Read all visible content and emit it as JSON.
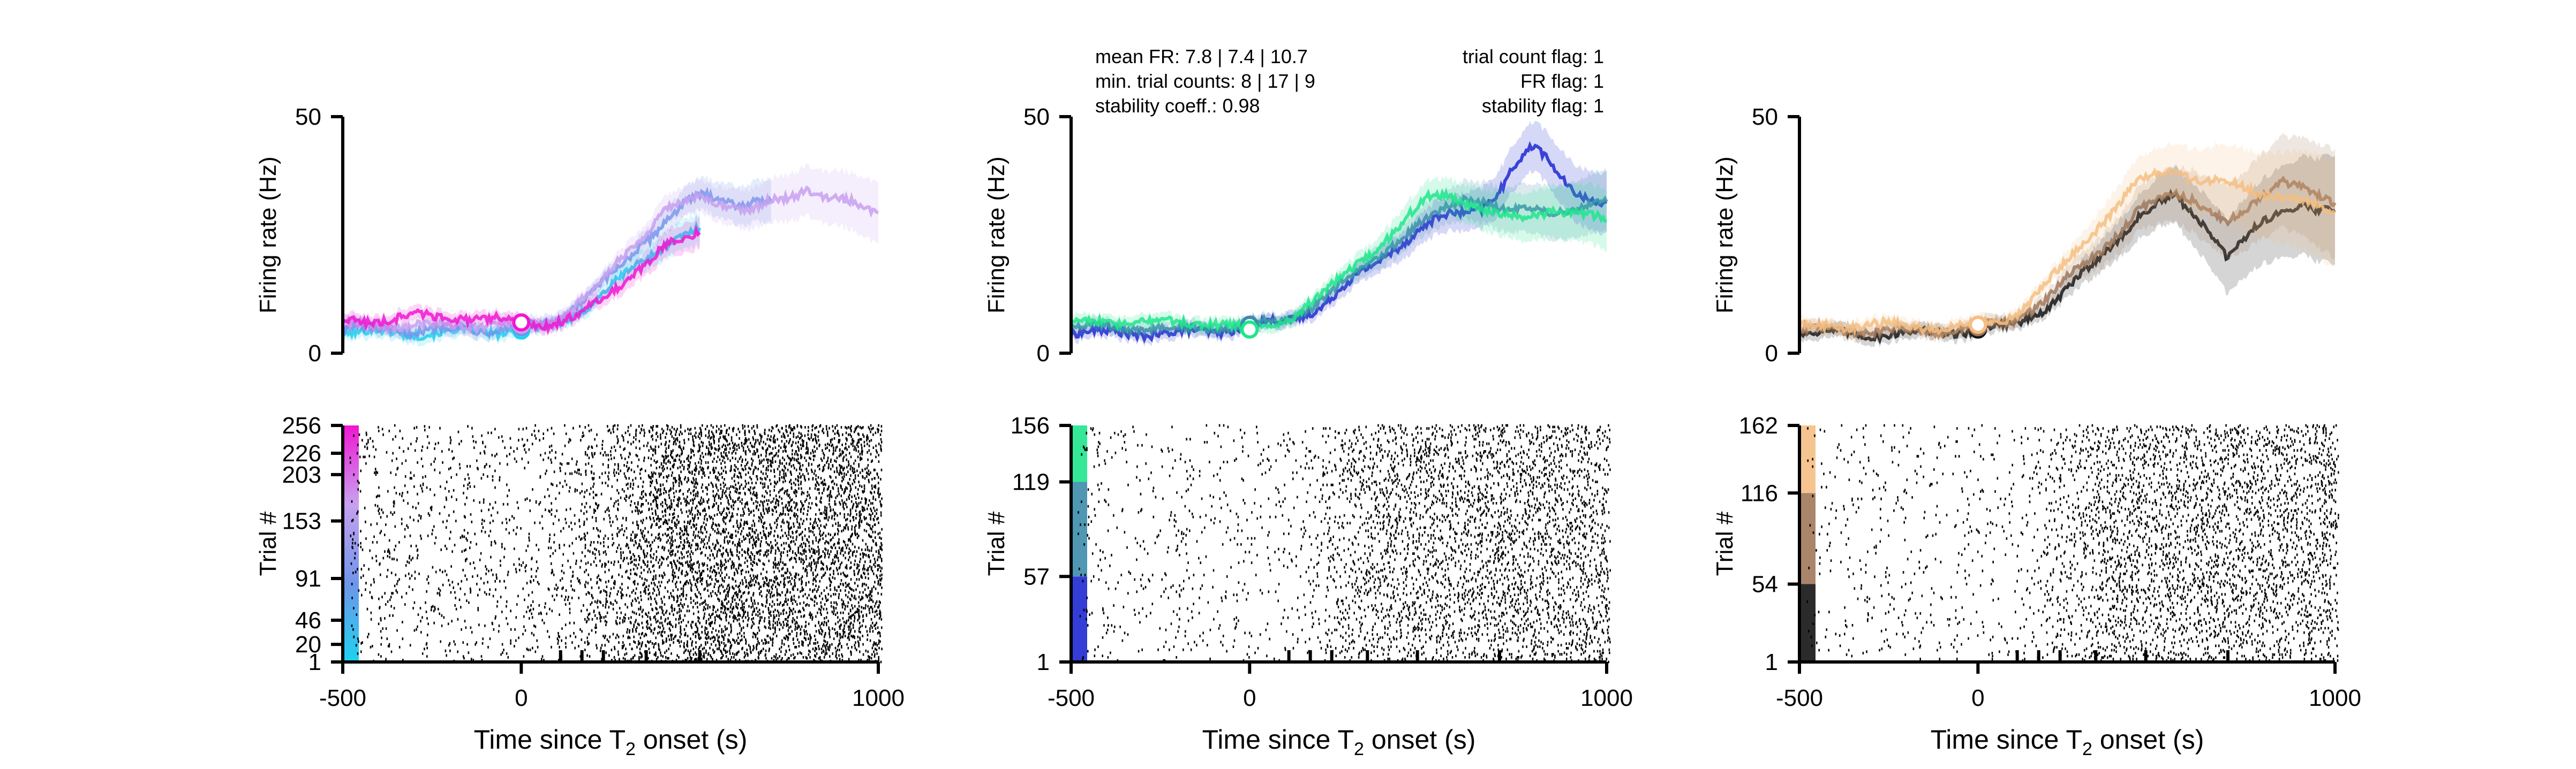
{
  "figure": {
    "ylabel_fr": "Firing rate (Hz)",
    "ylabel_raster": "Trial #",
    "xlabel": "Time since T",
    "xlabel_sub": "2",
    "xlabel_suffix": " onset (s)",
    "stats_left": [
      "mean FR: 7.8 | 7.4 | 10.7",
      "min. trial counts: 8 | 17 | 9",
      "stability coeff.: 0.98"
    ],
    "stats_right": [
      "trial count flag: 1",
      "FR flag: 1",
      "stability flag: 1"
    ]
  },
  "chart_data": [
    {
      "type": "line",
      "panel": "left-firing-rate",
      "xlim": [
        -500,
        1000
      ],
      "ylim": [
        0,
        50
      ],
      "yticks": [
        0,
        50
      ],
      "marker_x": 0,
      "series": [
        {
          "color": "#1ed2f0",
          "x": [
            -500,
            -400,
            -300,
            -200,
            -100,
            0,
            50,
            100,
            150,
            200,
            250,
            300,
            350,
            400,
            450,
            500
          ],
          "y": [
            4.5,
            4.3,
            4.2,
            4.4,
            4.6,
            4.8,
            5,
            6,
            8,
            11,
            14,
            17,
            20,
            23,
            25,
            26
          ]
        },
        {
          "color": "#6e96eb",
          "x": [
            -500,
            -400,
            -300,
            -200,
            -100,
            0,
            50,
            100,
            150,
            200,
            250,
            300,
            350,
            400,
            450,
            500,
            550,
            600,
            650,
            700
          ],
          "y": [
            5,
            5,
            4.8,
            5,
            5.2,
            5.5,
            5.8,
            7,
            10,
            13,
            16,
            20,
            24,
            28,
            31,
            33,
            33,
            32,
            32,
            32
          ]
        },
        {
          "color": "#c8a0f0",
          "x": [
            -500,
            -400,
            -300,
            -200,
            -100,
            0,
            100,
            200,
            300,
            400,
            500,
            600,
            650,
            700,
            750,
            800,
            850,
            900,
            950,
            1000
          ],
          "y": [
            6,
            6,
            5.8,
            6,
            6,
            6,
            7,
            13,
            22,
            30,
            33,
            31,
            30,
            32,
            33,
            35,
            33,
            32,
            31,
            30
          ]
        },
        {
          "color": "#f016d2",
          "x": [
            -500,
            -450,
            -400,
            -350,
            -300,
            -250,
            -200,
            -150,
            -100,
            -50,
            0,
            50,
            100,
            150,
            200,
            250,
            300,
            350,
            400,
            450,
            500
          ],
          "y": [
            6.5,
            7,
            7,
            7.5,
            8,
            7.5,
            8,
            7.5,
            7,
            7,
            6.5,
            6,
            6.5,
            7.5,
            10,
            13,
            16,
            19,
            22,
            24,
            26
          ]
        }
      ]
    },
    {
      "type": "line",
      "panel": "middle-firing-rate",
      "xlim": [
        -500,
        1000
      ],
      "ylim": [
        0,
        50
      ],
      "yticks": [
        0,
        50
      ],
      "marker_x": 0,
      "series": [
        {
          "color": "#1e28d2",
          "x": [
            -500,
            -400,
            -300,
            -200,
            -100,
            0,
            100,
            200,
            300,
            400,
            500,
            550,
            600,
            650,
            700,
            750,
            800,
            850,
            900,
            950,
            1000
          ],
          "y": [
            4.5,
            4.3,
            4.2,
            4.3,
            4.6,
            6,
            6.5,
            10,
            16,
            22,
            27,
            29,
            30,
            31,
            34,
            40,
            44,
            40,
            35,
            32,
            31
          ]
        },
        {
          "color": "#3c8caa",
          "x": [
            -500,
            -400,
            -300,
            -200,
            -100,
            0,
            100,
            200,
            300,
            400,
            500,
            550,
            600,
            650,
            700,
            750,
            800,
            850,
            900,
            950,
            1000
          ],
          "y": [
            5.5,
            5.5,
            5.2,
            5.3,
            5.6,
            6,
            7,
            11,
            17,
            23,
            28,
            31,
            33,
            32,
            30,
            30,
            31,
            30,
            30,
            31,
            32
          ]
        },
        {
          "color": "#1ee68c",
          "x": [
            -500,
            -400,
            -300,
            -200,
            -100,
            0,
            100,
            200,
            300,
            400,
            500,
            550,
            600,
            650,
            700,
            750,
            800,
            850,
            900,
            950,
            1000
          ],
          "y": [
            6.5,
            6.8,
            6.5,
            6.5,
            6.5,
            5,
            7,
            12,
            19,
            25,
            33,
            34,
            32,
            30,
            29,
            29,
            30,
            30,
            29,
            29,
            29
          ]
        }
      ]
    },
    {
      "type": "line",
      "panel": "right-firing-rate",
      "xlim": [
        -500,
        1000
      ],
      "ylim": [
        0,
        50
      ],
      "yticks": [
        0,
        50
      ],
      "marker_x": 0,
      "series": [
        {
          "color": "#141414",
          "x": [
            -500,
            -400,
            -300,
            -200,
            -100,
            0,
            100,
            200,
            300,
            400,
            450,
            500,
            550,
            600,
            650,
            700,
            750,
            800,
            850,
            900,
            950,
            1000
          ],
          "y": [
            4.5,
            4.2,
            4,
            4.2,
            4.5,
            5,
            6,
            10,
            17,
            25,
            29,
            31,
            33,
            30,
            26,
            20,
            24,
            28,
            30,
            32,
            30,
            30
          ]
        },
        {
          "color": "#a0785a",
          "x": [
            -500,
            -400,
            -300,
            -200,
            -100,
            0,
            100,
            200,
            300,
            400,
            450,
            500,
            550,
            600,
            650,
            700,
            750,
            800,
            850,
            900,
            950,
            1000
          ],
          "y": [
            5,
            5,
            4.8,
            4.8,
            5,
            5.5,
            7,
            12,
            19,
            26,
            30,
            32,
            34,
            33,
            30,
            27,
            30,
            34,
            37,
            35,
            33,
            31
          ]
        },
        {
          "color": "#f5be82",
          "x": [
            -500,
            -400,
            -300,
            -200,
            -100,
            0,
            100,
            200,
            300,
            400,
            450,
            500,
            550,
            600,
            650,
            700,
            750,
            800,
            850,
            900,
            950,
            1000
          ],
          "y": [
            5.5,
            5.8,
            6,
            5.8,
            5.5,
            6,
            8,
            15,
            24,
            32,
            36,
            38,
            39,
            37,
            36,
            36,
            35,
            34,
            33,
            32,
            31,
            30
          ]
        }
      ]
    },
    {
      "type": "scatter",
      "panel": "left-raster",
      "xlim": [
        -500,
        1000
      ],
      "ylim": [
        1,
        256
      ],
      "xticks": [
        -500,
        0,
        1000
      ],
      "yticks": [
        1,
        20,
        46,
        91,
        153,
        203,
        226,
        256
      ],
      "event_ticks_x": [
        110,
        170,
        230,
        350,
        500
      ],
      "trials": 256,
      "spike_rate_baseline_hz": 6,
      "spike_rate_late_hz": 30
    },
    {
      "type": "scatter",
      "panel": "middle-raster",
      "xlim": [
        -500,
        1000
      ],
      "ylim": [
        1,
        156
      ],
      "xticks": [
        -500,
        0,
        1000
      ],
      "yticks": [
        1,
        57,
        119,
        156
      ],
      "event_ticks_x": [
        110,
        170,
        230,
        330,
        470,
        700
      ],
      "trials": 156,
      "spike_rate_baseline_hz": 6,
      "spike_rate_late_hz": 30
    },
    {
      "type": "scatter",
      "panel": "right-raster",
      "xlim": [
        -500,
        1000
      ],
      "ylim": [
        1,
        162
      ],
      "xticks": [
        -500,
        0,
        1000
      ],
      "yticks": [
        1,
        54,
        116,
        162
      ],
      "event_ticks_x": [
        110,
        170,
        230,
        330,
        470,
        700
      ],
      "trials": 162,
      "spike_rate_baseline_hz": 5,
      "spike_rate_late_hz": 28
    }
  ]
}
